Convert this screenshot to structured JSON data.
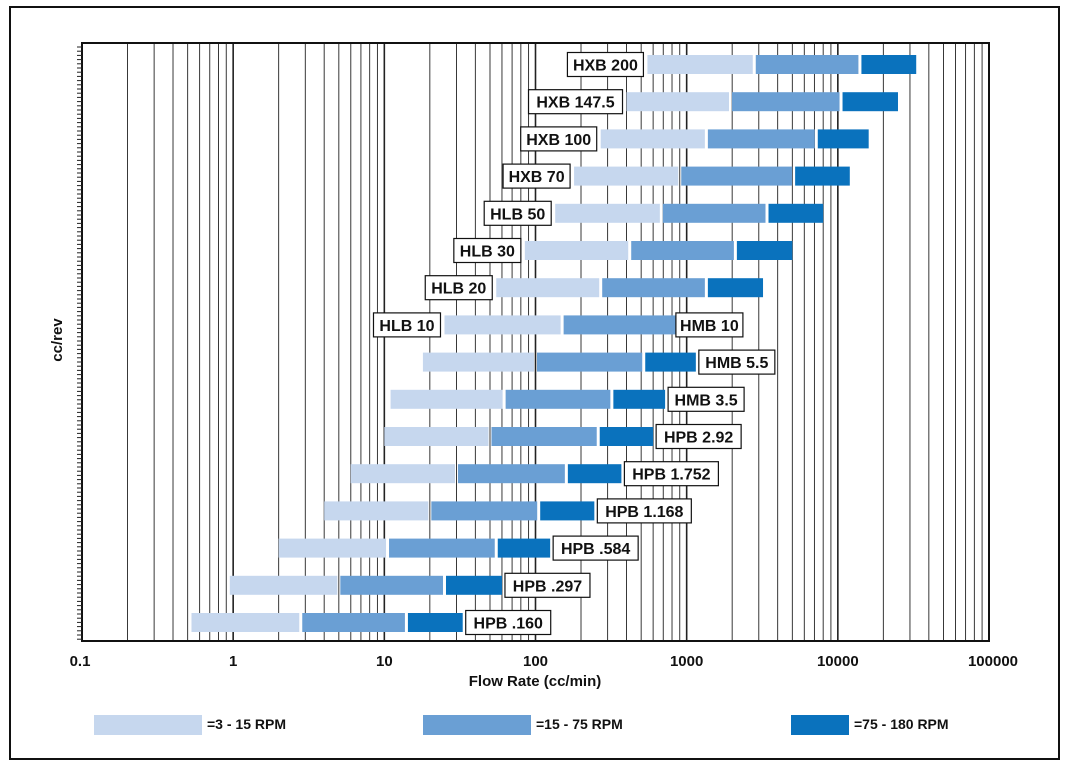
{
  "chart_data": {
    "type": "bar",
    "orientation": "horizontal-range",
    "x_scale": "log",
    "xlim": [
      0.1,
      100000
    ],
    "xlabel": "Flow Rate (cc/min)",
    "ylabel": "cc/rev",
    "x_ticks": [
      "0.1",
      "1",
      "10",
      "100",
      "1000",
      "10000",
      "100000"
    ],
    "grid": true,
    "legend_position": "bottom",
    "series": [
      {
        "name": "=3 - 15 RPM",
        "color": "#c6d7ee"
      },
      {
        "name": "=15 - 75 RPM",
        "color": "#6a9fd4"
      },
      {
        "name": "=75 - 180 RPM",
        "color": "#0a72bd"
      }
    ],
    "rows": [
      {
        "label": "HXB 200",
        "label_side": "left",
        "ranges": [
          [
            550,
            2800
          ],
          [
            2800,
            14000
          ],
          [
            14000,
            33000
          ]
        ]
      },
      {
        "label": "HXB 147.5",
        "label_side": "left",
        "ranges": [
          [
            400,
            1950
          ],
          [
            1950,
            10500
          ],
          [
            10500,
            25000
          ]
        ]
      },
      {
        "label": "HXB 100",
        "label_side": "left",
        "ranges": [
          [
            270,
            1350
          ],
          [
            1350,
            7200
          ],
          [
            7200,
            16000
          ]
        ]
      },
      {
        "label": "HXB 70",
        "label_side": "left",
        "ranges": [
          [
            180,
            900
          ],
          [
            900,
            5100
          ],
          [
            5100,
            12000
          ]
        ]
      },
      {
        "label": "HLB 50",
        "label_side": "left",
        "ranges": [
          [
            135,
            680
          ],
          [
            680,
            3400
          ],
          [
            3400,
            8000
          ]
        ]
      },
      {
        "label": "HLB 30",
        "label_side": "left",
        "ranges": [
          [
            85,
            420
          ],
          [
            420,
            2100
          ],
          [
            2100,
            5000
          ]
        ]
      },
      {
        "label": "HLB 20",
        "label_side": "left",
        "ranges": [
          [
            55,
            270
          ],
          [
            270,
            1350
          ],
          [
            1350,
            3200
          ]
        ]
      },
      {
        "label": "HLB 10",
        "label_side": "left",
        "ranges": [
          [
            25,
            150
          ],
          [
            150,
            950
          ],
          [
            950,
            2250
          ]
        ],
        "label_right": "HMB 10"
      },
      {
        "label": "HMB 5.5",
        "label_side": "right",
        "ranges": [
          [
            18,
            100
          ],
          [
            100,
            520
          ],
          [
            520,
            1150
          ]
        ]
      },
      {
        "label": "HMB 3.5",
        "label_side": "right",
        "ranges": [
          [
            11,
            62
          ],
          [
            62,
            320
          ],
          [
            320,
            720
          ]
        ]
      },
      {
        "label": "HPB 2.92",
        "label_side": "right",
        "ranges": [
          [
            10,
            50
          ],
          [
            50,
            260
          ],
          [
            260,
            600
          ]
        ]
      },
      {
        "label": "HPB 1.752",
        "label_side": "right",
        "ranges": [
          [
            6,
            30
          ],
          [
            30,
            160
          ],
          [
            160,
            370
          ]
        ]
      },
      {
        "label": "HPB 1.168",
        "label_side": "right",
        "ranges": [
          [
            4,
            20
          ],
          [
            20,
            105
          ],
          [
            105,
            245
          ]
        ]
      },
      {
        "label": "HPB .584",
        "label_side": "right",
        "ranges": [
          [
            2,
            10.5
          ],
          [
            10.5,
            55
          ],
          [
            55,
            125
          ]
        ]
      },
      {
        "label": "HPB .297",
        "label_side": "right",
        "ranges": [
          [
            0.95,
            5
          ],
          [
            5,
            25
          ],
          [
            25,
            60
          ]
        ]
      },
      {
        "label": "HPB .160",
        "label_side": "right",
        "ranges": [
          [
            0.53,
            2.8
          ],
          [
            2.8,
            14
          ],
          [
            14,
            33
          ]
        ]
      }
    ]
  }
}
